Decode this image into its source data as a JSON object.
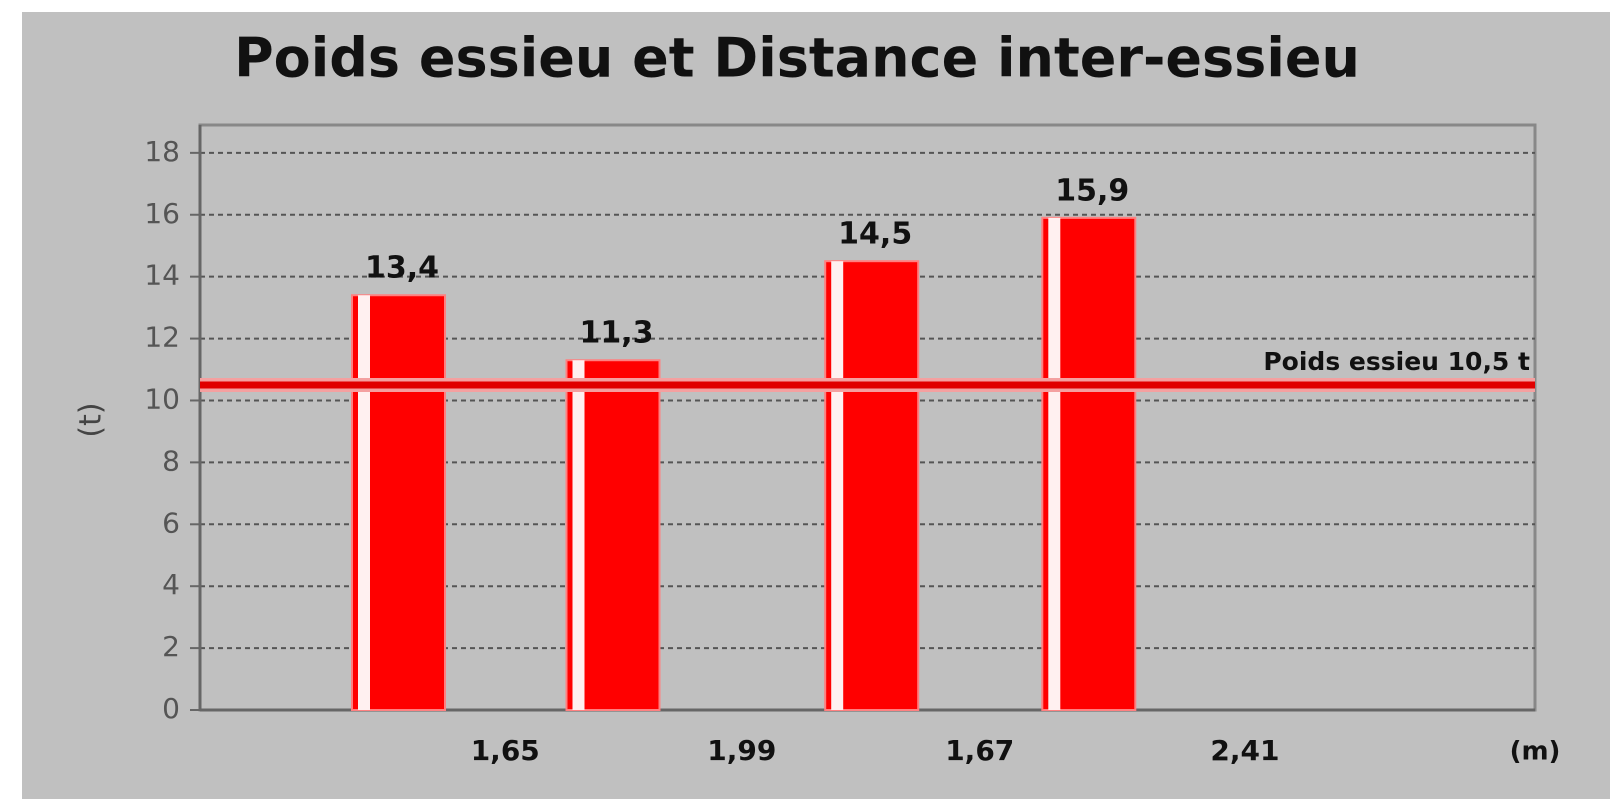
{
  "chart_data": {
    "type": "bar",
    "title": "Poids essieu et Distance inter-essieu",
    "y_label": "(t)",
    "x_label": "(m)",
    "values": [
      13.4,
      11.3,
      14.5,
      15.9
    ],
    "value_labels": [
      "13,4",
      "11,3",
      "14,5",
      "15,9"
    ],
    "distances": [
      {
        "value": 1.65,
        "label": "1,65"
      },
      {
        "value": 1.99,
        "label": "1,99"
      },
      {
        "value": 1.67,
        "label": "1,67"
      },
      {
        "value": 2.41,
        "label": "2,41"
      }
    ],
    "color": "#ff0000",
    "ylim": [
      0,
      18.9
    ],
    "yticks": [
      0,
      2,
      4,
      6,
      8,
      10,
      12,
      14,
      16,
      18
    ],
    "grid": true,
    "reference_line": {
      "value": 10.5,
      "label": "Poids essieu 10,5 t",
      "color": "#e00000"
    }
  }
}
